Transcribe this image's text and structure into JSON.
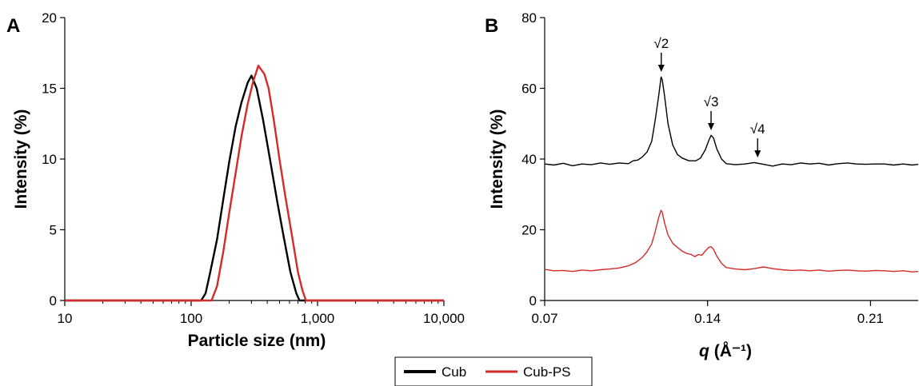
{
  "colors": {
    "series_1": "#000000",
    "series_2": "#d42a2a"
  },
  "legend": {
    "items": [
      {
        "label": "Cub",
        "color": "#000000"
      },
      {
        "label": "Cub-PS",
        "color": "#d42a2a"
      }
    ],
    "placement": "bottom-center"
  },
  "chart_data": [
    {
      "panel": "A",
      "type": "line",
      "xlabel": "Particle size (nm)",
      "ylabel": "Intensity (%)",
      "xscale": "log",
      "xlim": [
        10,
        10000
      ],
      "ylim": [
        0,
        20
      ],
      "xticks": [
        10,
        100,
        1000,
        10000
      ],
      "xtick_labels": [
        "10",
        "100",
        "1,000",
        "10,000"
      ],
      "yticks": [
        0,
        5,
        10,
        15,
        20
      ],
      "ytick_labels": [
        "0",
        "5",
        "10",
        "15",
        "20"
      ],
      "grid": false,
      "series": [
        {
          "name": "Cub",
          "points": [
            [
              10,
              0
            ],
            [
              120,
              0
            ],
            [
              130,
              0.5
            ],
            [
              140,
              1.8
            ],
            [
              160,
              4.3
            ],
            [
              180,
              7.2
            ],
            [
              200,
              9.8
            ],
            [
              225,
              12.3
            ],
            [
              250,
              14.0
            ],
            [
              280,
              15.4
            ],
            [
              300,
              15.9
            ],
            [
              330,
              15.0
            ],
            [
              370,
              12.8
            ],
            [
              420,
              10.0
            ],
            [
              480,
              7.0
            ],
            [
              540,
              4.5
            ],
            [
              610,
              2.0
            ],
            [
              680,
              0.5
            ],
            [
              720,
              0
            ],
            [
              10000,
              0
            ]
          ]
        },
        {
          "name": "Cub-PS",
          "points": [
            [
              10,
              0
            ],
            [
              145,
              0
            ],
            [
              160,
              1.0
            ],
            [
              180,
              3.5
            ],
            [
              200,
              6.2
            ],
            [
              225,
              9.0
            ],
            [
              250,
              11.6
            ],
            [
              280,
              13.9
            ],
            [
              310,
              15.5
            ],
            [
              340,
              16.6
            ],
            [
              380,
              16.0
            ],
            [
              410,
              15.0
            ],
            [
              450,
              12.8
            ],
            [
              500,
              10.0
            ],
            [
              560,
              7.2
            ],
            [
              630,
              4.5
            ],
            [
              700,
              2.0
            ],
            [
              760,
              0.7
            ],
            [
              810,
              0
            ],
            [
              10000,
              0
            ]
          ]
        }
      ]
    },
    {
      "panel": "B",
      "type": "line",
      "xlabel_symbol": "q",
      "xlabel_unit": "(Å⁻¹)",
      "ylabel": "Intensity (%)",
      "xlim": [
        0.07,
        0.2305
      ],
      "ylim": [
        0,
        80
      ],
      "xticks": [
        0.07,
        0.14,
        0.21
      ],
      "xtick_labels": [
        "0.07",
        "0.14",
        "0.21"
      ],
      "yticks": [
        0,
        20,
        40,
        60,
        80
      ],
      "ytick_labels": [
        "0",
        "20",
        "40",
        "60",
        "80"
      ],
      "grid": false,
      "annotations": [
        {
          "text": "√2",
          "x": 0.1201,
          "y": 63.5
        },
        {
          "text": "√3",
          "x": 0.1415,
          "y": 47.0
        },
        {
          "text": "√4",
          "x": 0.1615,
          "y": 39.3
        }
      ],
      "series": [
        {
          "name": "Cub",
          "points": [
            [
              0.07,
              38.6
            ],
            [
              0.074,
              38.3
            ],
            [
              0.078,
              38.8
            ],
            [
              0.082,
              38.1
            ],
            [
              0.086,
              38.6
            ],
            [
              0.09,
              38.4
            ],
            [
              0.094,
              38.9
            ],
            [
              0.098,
              38.5
            ],
            [
              0.102,
              38.9
            ],
            [
              0.106,
              38.7
            ],
            [
              0.108,
              39.5
            ],
            [
              0.11,
              39.7
            ],
            [
              0.112,
              40.6
            ],
            [
              0.114,
              42.0
            ],
            [
              0.116,
              45.0
            ],
            [
              0.1175,
              51.0
            ],
            [
              0.119,
              58.0
            ],
            [
              0.12,
              63.2
            ],
            [
              0.1205,
              62.5
            ],
            [
              0.1215,
              58.0
            ],
            [
              0.123,
              50.0
            ],
            [
              0.125,
              44.0
            ],
            [
              0.127,
              41.3
            ],
            [
              0.129,
              40.3
            ],
            [
              0.132,
              39.5
            ],
            [
              0.135,
              39.5
            ],
            [
              0.137,
              40.3
            ],
            [
              0.139,
              42.6
            ],
            [
              0.1405,
              45.2
            ],
            [
              0.1415,
              46.7
            ],
            [
              0.1425,
              46.0
            ],
            [
              0.144,
              42.8
            ],
            [
              0.146,
              40.0
            ],
            [
              0.148,
              38.7
            ],
            [
              0.152,
              38.4
            ],
            [
              0.156,
              38.6
            ],
            [
              0.16,
              39.0
            ],
            [
              0.164,
              38.5
            ],
            [
              0.168,
              38.0
            ],
            [
              0.172,
              38.6
            ],
            [
              0.176,
              38.4
            ],
            [
              0.18,
              38.9
            ],
            [
              0.184,
              38.6
            ],
            [
              0.188,
              38.8
            ],
            [
              0.192,
              38.3
            ],
            [
              0.196,
              38.7
            ],
            [
              0.2,
              38.9
            ],
            [
              0.204,
              38.6
            ],
            [
              0.208,
              38.5
            ],
            [
              0.212,
              38.6
            ],
            [
              0.216,
              38.6
            ],
            [
              0.22,
              38.3
            ],
            [
              0.224,
              38.6
            ],
            [
              0.228,
              38.3
            ],
            [
              0.2305,
              38.5
            ]
          ]
        },
        {
          "name": "Cub-PS",
          "points": [
            [
              0.07,
              8.8
            ],
            [
              0.074,
              8.4
            ],
            [
              0.078,
              8.5
            ],
            [
              0.082,
              8.2
            ],
            [
              0.086,
              8.6
            ],
            [
              0.09,
              8.4
            ],
            [
              0.094,
              8.7
            ],
            [
              0.098,
              8.9
            ],
            [
              0.102,
              9.2
            ],
            [
              0.106,
              9.8
            ],
            [
              0.109,
              10.7
            ],
            [
              0.112,
              12.2
            ],
            [
              0.114,
              13.8
            ],
            [
              0.116,
              16.0
            ],
            [
              0.1175,
              19.5
            ],
            [
              0.119,
              23.5
            ],
            [
              0.12,
              25.5
            ],
            [
              0.1205,
              25.0
            ],
            [
              0.1215,
              22.0
            ],
            [
              0.123,
              18.5
            ],
            [
              0.125,
              16.2
            ],
            [
              0.127,
              15.0
            ],
            [
              0.129,
              14.0
            ],
            [
              0.131,
              13.3
            ],
            [
              0.133,
              13.0
            ],
            [
              0.1345,
              12.4
            ],
            [
              0.136,
              13.0
            ],
            [
              0.1375,
              12.8
            ],
            [
              0.139,
              14.0
            ],
            [
              0.1405,
              15.0
            ],
            [
              0.1415,
              15.2
            ],
            [
              0.1425,
              14.5
            ],
            [
              0.144,
              12.5
            ],
            [
              0.146,
              10.5
            ],
            [
              0.148,
              9.3
            ],
            [
              0.152,
              8.9
            ],
            [
              0.156,
              8.7
            ],
            [
              0.16,
              9.0
            ],
            [
              0.164,
              9.5
            ],
            [
              0.168,
              9.0
            ],
            [
              0.172,
              8.7
            ],
            [
              0.176,
              8.5
            ],
            [
              0.18,
              8.6
            ],
            [
              0.184,
              8.4
            ],
            [
              0.188,
              8.6
            ],
            [
              0.192,
              8.3
            ],
            [
              0.196,
              8.5
            ],
            [
              0.2,
              8.6
            ],
            [
              0.204,
              8.4
            ],
            [
              0.208,
              8.3
            ],
            [
              0.212,
              8.5
            ],
            [
              0.216,
              8.4
            ],
            [
              0.22,
              8.2
            ],
            [
              0.224,
              8.4
            ],
            [
              0.228,
              8.1
            ],
            [
              0.2305,
              8.2
            ]
          ]
        }
      ]
    }
  ]
}
